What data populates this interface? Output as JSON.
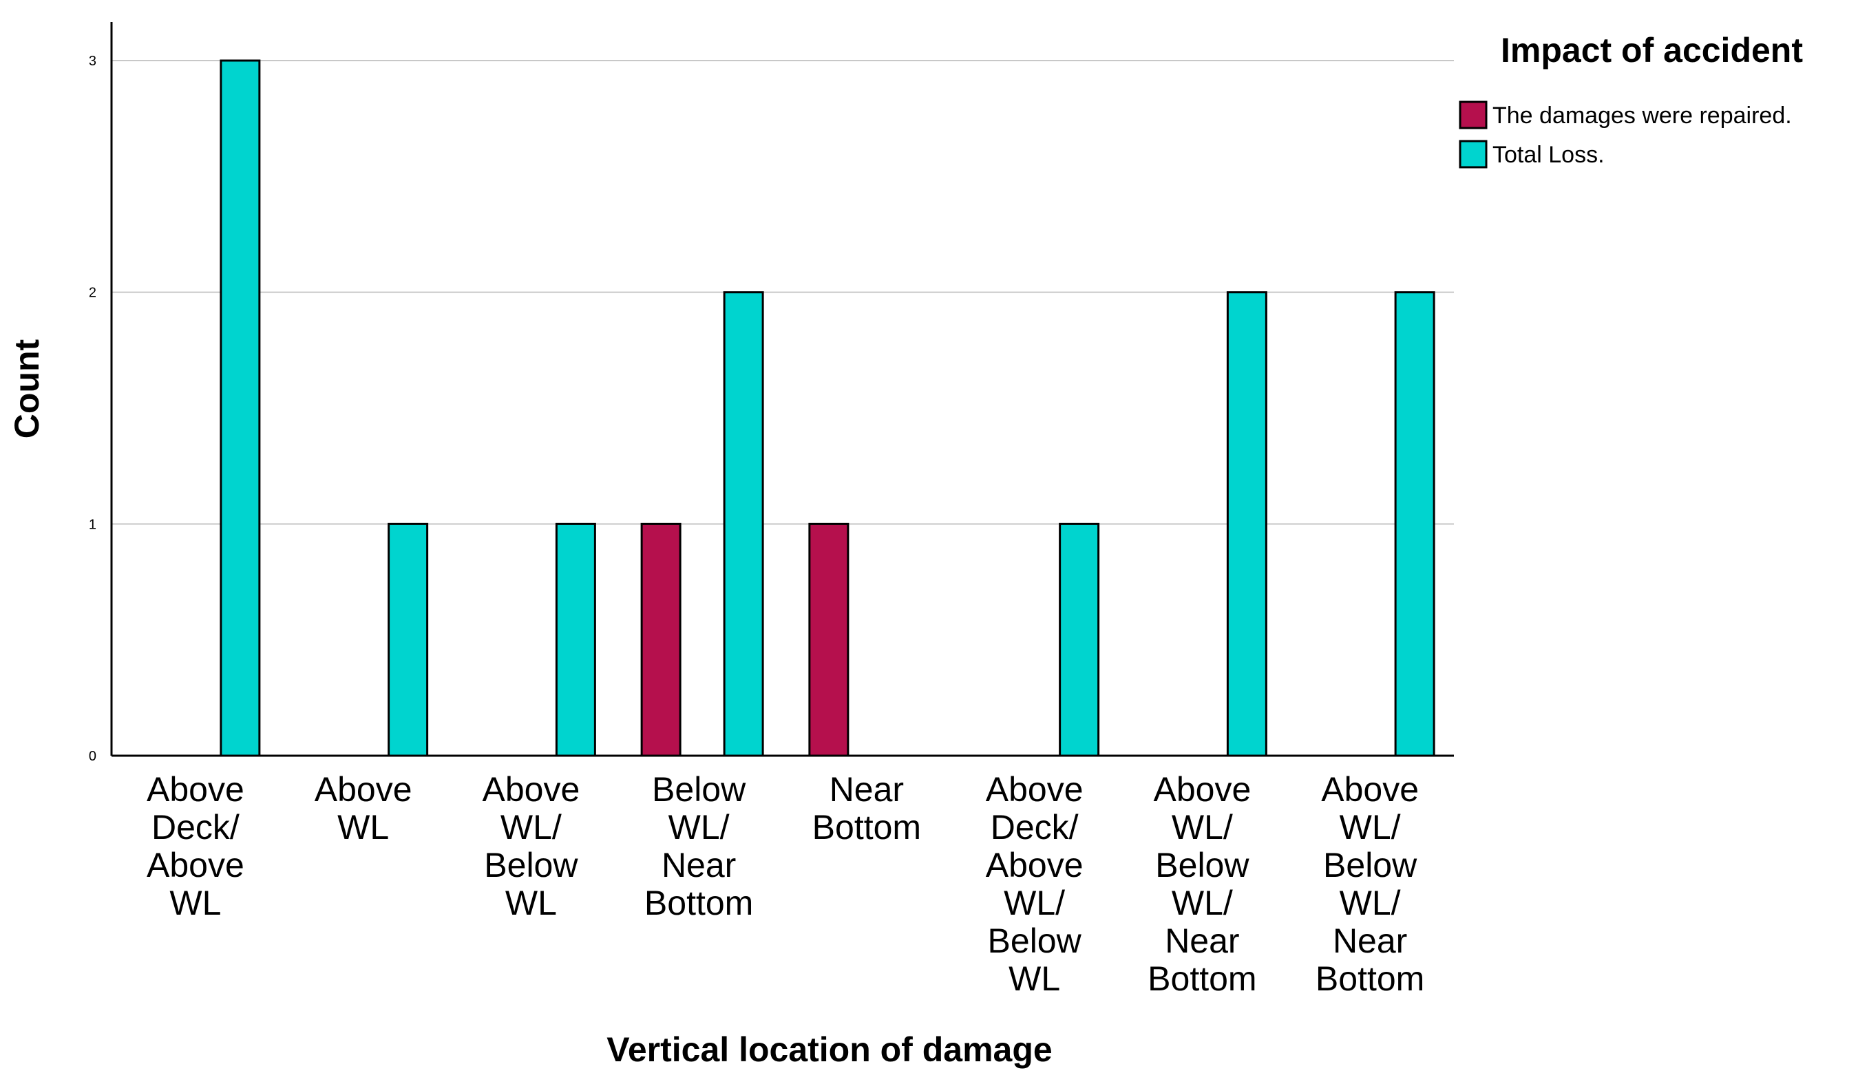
{
  "chart_data": {
    "type": "bar",
    "xlabel": "Vertical location of damage",
    "ylabel": "Count",
    "ylim": [
      0,
      3
    ],
    "yticks": [
      0,
      1,
      2,
      3
    ],
    "grid": true,
    "legend_placement": "top-right",
    "legend_title": "Impact of accident",
    "categories": [
      [
        "Above",
        "Deck/",
        "Above",
        "WL"
      ],
      [
        "Above",
        "WL"
      ],
      [
        "Above",
        "WL/",
        "Below",
        "WL"
      ],
      [
        "Below",
        "WL/",
        "Near",
        "Bottom"
      ],
      [
        "Near",
        "Bottom"
      ],
      [
        "Above",
        "Deck/",
        "Above",
        "WL/",
        "Below",
        "WL"
      ],
      [
        "Above",
        "WL/",
        "Below",
        "WL/",
        "Near",
        "Bottom"
      ],
      [
        "Above",
        "WL/",
        "Below",
        "WL/",
        "Near",
        "Bottom"
      ]
    ],
    "series": [
      {
        "name": "The damages were repaired.",
        "color": "#b5104d",
        "values": [
          0,
          0,
          0,
          1,
          1,
          0,
          0,
          0
        ]
      },
      {
        "name": "Total Loss.",
        "color": "#00d4cf",
        "values": [
          3,
          1,
          1,
          2,
          0,
          1,
          2,
          2
        ]
      }
    ]
  }
}
